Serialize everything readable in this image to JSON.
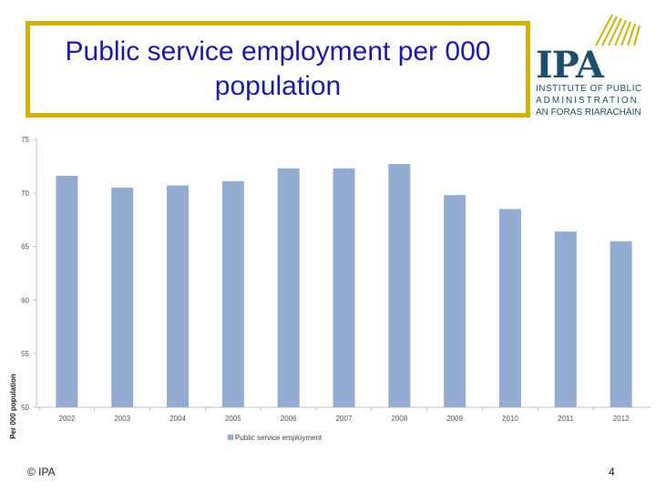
{
  "slide": {
    "title": "Public service employment per 000 population",
    "footer_copyright": "© IPA",
    "page_number": "4"
  },
  "logo": {
    "letters": "IPA",
    "line1": "INSTITUTE OF PUBLIC",
    "line2": "ADMINISTRATION",
    "line3": "AN FORAS RIARACHÁIN"
  },
  "colors": {
    "title_border": "#d4b10a",
    "title_text": "#1a1aa6",
    "bar": "#95acd2",
    "logo_blue": "#1f4e6b",
    "logo_gold": "#d4b10a"
  },
  "chart_data": {
    "type": "bar",
    "categories": [
      "2002",
      "2003",
      "2004",
      "2005",
      "2006",
      "2007",
      "2008",
      "2009",
      "2010",
      "2011",
      "2012"
    ],
    "values": [
      71.6,
      70.5,
      70.7,
      71.1,
      72.3,
      72.3,
      72.7,
      69.8,
      68.5,
      66.4,
      65.5
    ],
    "series_name": "Public service employment",
    "ylabel": "Per 000 population",
    "xlabel": "",
    "ylim": [
      50,
      75
    ],
    "yticks": [
      50,
      55,
      60,
      65,
      70,
      75
    ],
    "grid": false,
    "legend": "bottom"
  }
}
